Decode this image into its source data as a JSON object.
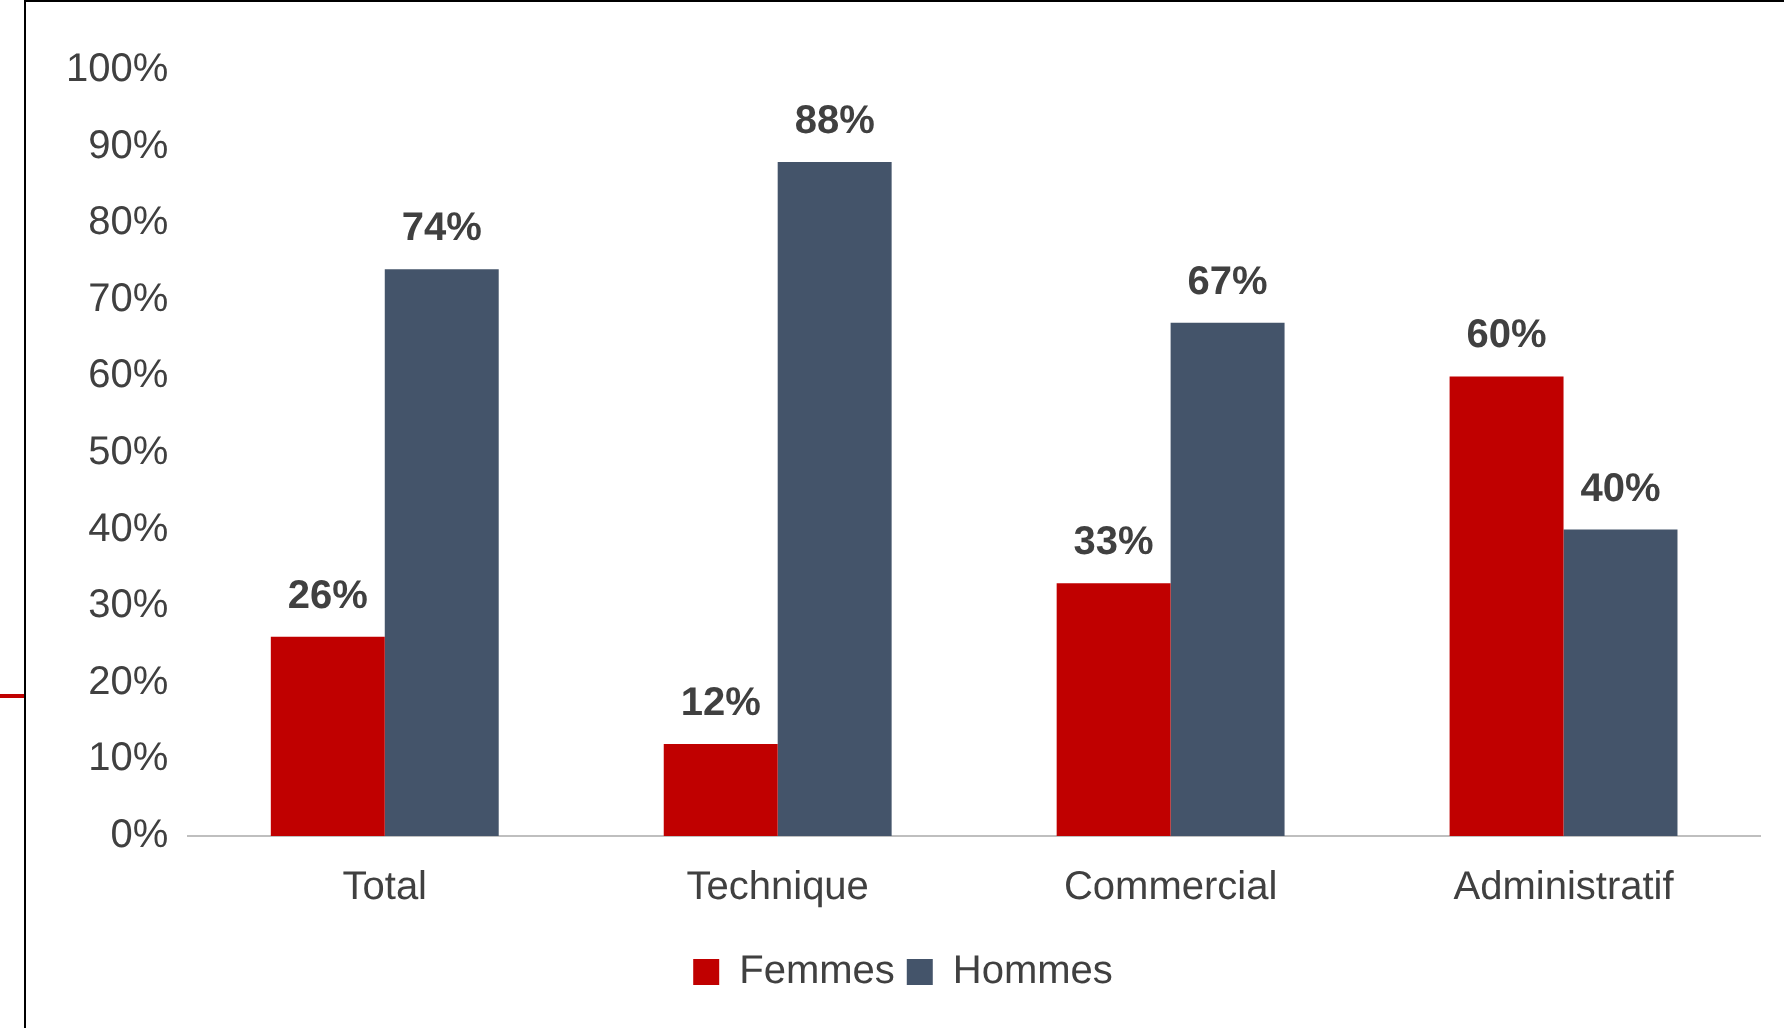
{
  "chart_data": {
    "type": "bar",
    "categories": [
      "Total",
      "Technique",
      "Commercial",
      "Administratif"
    ],
    "series": [
      {
        "name": "Femmes",
        "color": "#c00000",
        "values": [
          26,
          12,
          33,
          60
        ],
        "value_labels": [
          "26%",
          "12%",
          "33%",
          "60%"
        ]
      },
      {
        "name": "Hommes",
        "color": "#44546a",
        "values": [
          74,
          88,
          67,
          40
        ],
        "value_labels": [
          "74%",
          "88%",
          "67%",
          "40%"
        ]
      }
    ],
    "ylim": [
      0,
      100
    ],
    "yticks": [
      {
        "value": 0,
        "label": "0%"
      },
      {
        "value": 10,
        "label": "10%"
      },
      {
        "value": 20,
        "label": "20%"
      },
      {
        "value": 30,
        "label": "30%"
      },
      {
        "value": 40,
        "label": "40%"
      },
      {
        "value": 50,
        "label": "50%"
      },
      {
        "value": 60,
        "label": "60%"
      },
      {
        "value": 70,
        "label": "70%"
      },
      {
        "value": 80,
        "label": "80%"
      },
      {
        "value": 90,
        "label": "90%"
      },
      {
        "value": 100,
        "label": "100%"
      }
    ],
    "grid": false,
    "legend": "bottom"
  }
}
